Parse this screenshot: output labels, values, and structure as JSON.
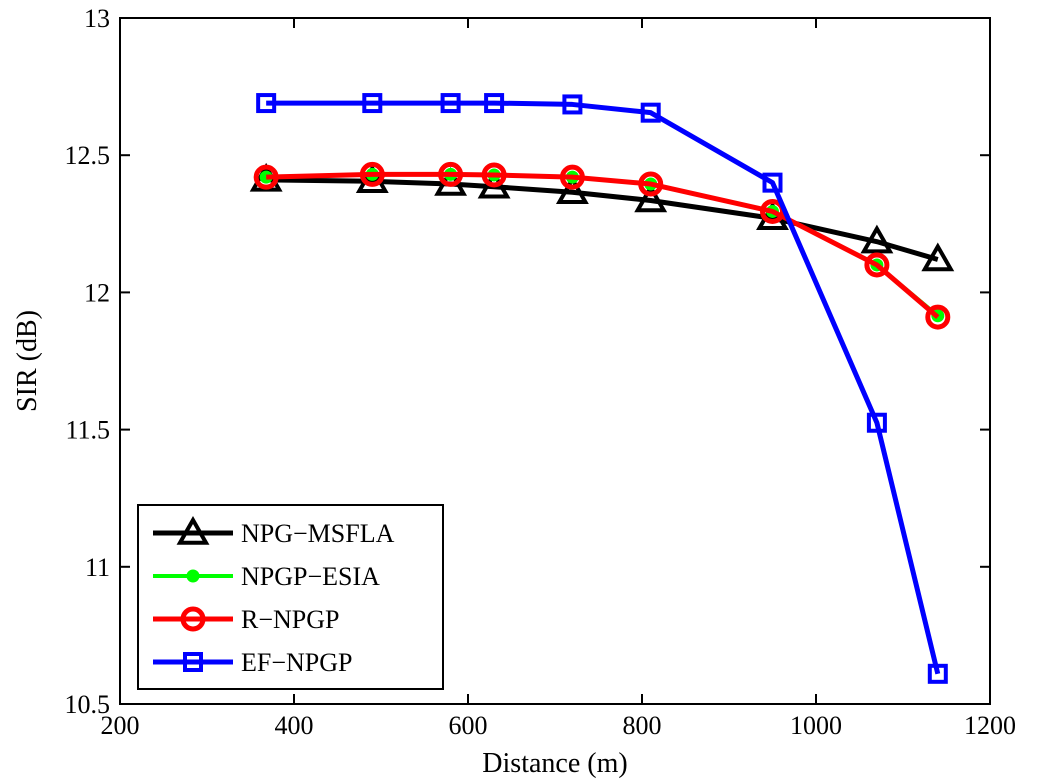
{
  "chart_data": {
    "type": "line",
    "title": "",
    "xlabel": "Distance (m)",
    "ylabel": "SIR (dB)",
    "xlim": [
      200,
      1200
    ],
    "ylim": [
      10.5,
      13
    ],
    "xticks": [
      200,
      400,
      600,
      800,
      1000,
      1200
    ],
    "xtick_labels": [
      "200",
      "400",
      "600",
      "800",
      "1000",
      "1200"
    ],
    "yticks": [
      10.5,
      11,
      11.5,
      12,
      12.5,
      13
    ],
    "ytick_labels": [
      "10.5",
      "11",
      "11.5",
      "12",
      "12.5",
      "13"
    ],
    "grid": false,
    "legend_position": "bottom-left",
    "series": [
      {
        "name": "NPG−MSFLA",
        "color": "#000000",
        "marker": "triangle",
        "x": [
          368,
          490,
          580,
          630,
          720,
          810,
          950,
          1070,
          1140
        ],
        "y": [
          12.41,
          12.405,
          12.395,
          12.385,
          12.365,
          12.335,
          12.27,
          12.185,
          12.12
        ]
      },
      {
        "name": "NPGP−ESIA",
        "color": "#00ff00",
        "marker": "dot",
        "x": [
          368,
          490,
          580,
          630,
          720,
          810,
          950,
          1070,
          1140
        ],
        "y": [
          12.42,
          12.43,
          12.43,
          12.428,
          12.42,
          12.395,
          12.295,
          12.1,
          11.915
        ]
      },
      {
        "name": "R−NPGP",
        "color": "#ff0000",
        "marker": "circle",
        "x": [
          368,
          490,
          580,
          630,
          720,
          810,
          950,
          1070,
          1140
        ],
        "y": [
          12.42,
          12.43,
          12.43,
          12.428,
          12.42,
          12.395,
          12.295,
          12.1,
          11.91
        ]
      },
      {
        "name": "EF−NPGP",
        "color": "#0000ff",
        "marker": "square",
        "x": [
          368,
          490,
          580,
          630,
          720,
          810,
          950,
          1070,
          1140
        ],
        "y": [
          12.69,
          12.69,
          12.69,
          12.69,
          12.685,
          12.655,
          12.4,
          11.525,
          10.61
        ]
      }
    ]
  }
}
